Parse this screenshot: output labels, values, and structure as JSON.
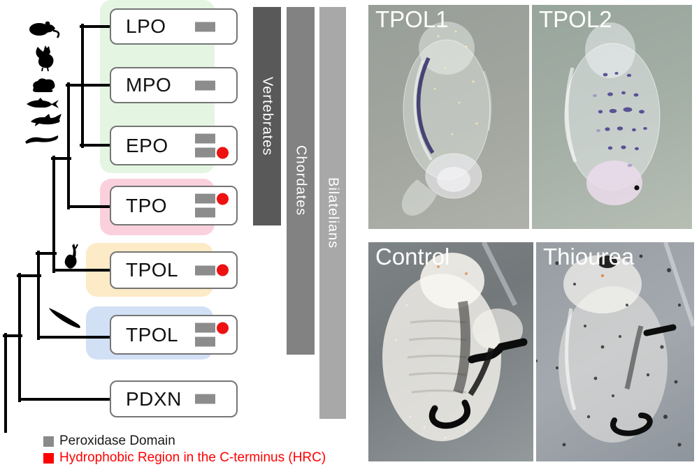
{
  "tree": {
    "genes": [
      {
        "label": "LPO",
        "bars": [
          {
            "hrc": false
          }
        ],
        "group": "vertebrate_po"
      },
      {
        "label": "MPO",
        "bars": [
          {
            "hrc": false
          }
        ],
        "group": "vertebrate_po"
      },
      {
        "label": "EPO",
        "bars": [
          {
            "hrc": false
          },
          {
            "hrc": true
          }
        ],
        "group": "vertebrate_po"
      },
      {
        "label": "TPO",
        "bars": [
          {
            "hrc": true
          },
          {
            "hrc": false
          }
        ],
        "group": "tpo"
      },
      {
        "label": "TPOL",
        "bars": [
          {
            "hrc": true
          }
        ],
        "group": "ascidian"
      },
      {
        "label": "TPOL",
        "bars": [
          {
            "hrc": true
          },
          {
            "hrc": false
          }
        ],
        "group": "amphioxus"
      },
      {
        "label": "PDXN",
        "bars": [
          {
            "hrc": false
          }
        ],
        "group": null
      }
    ],
    "silhouettes": [
      "mouse",
      "rooster",
      "frog",
      "trout",
      "shark",
      "lamprey",
      "ascidian-larva",
      "amphioxus"
    ],
    "highlight_colors": {
      "vertebrate_po": "#e4f6e2",
      "tpo": "#fbd0dd",
      "ascidian": "#fdeac6",
      "amphioxus": "#d2e0f6"
    }
  },
  "clade_bars": [
    {
      "label": "Vertebrates",
      "color": "#595959"
    },
    {
      "label": "Chordates",
      "color": "#828282"
    },
    {
      "label": "Bilatelians",
      "color": "#a8a8a8"
    }
  ],
  "legend": {
    "items": [
      {
        "label": "Peroxidase Domain",
        "color": "#8a8a8a",
        "text_color": "#1a1a1a"
      },
      {
        "label": "Hydrophobic Region in the C-terminus (HRC)",
        "color": "#ff0000",
        "text_color": "#ff0000"
      }
    ]
  },
  "micrographs": {
    "panels": [
      {
        "label": "TPOL1"
      },
      {
        "label": "TPOL2"
      },
      {
        "label": "Control"
      },
      {
        "label": "Thiourea"
      }
    ]
  },
  "domain_colors": {
    "peroxidase": "#8c8c8c",
    "hrc": "#ee1111"
  }
}
